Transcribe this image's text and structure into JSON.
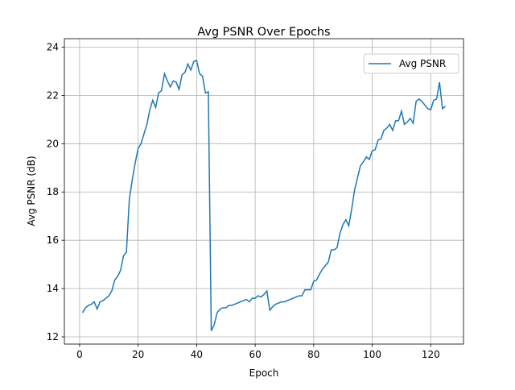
{
  "chart_data": {
    "type": "line",
    "title": "Avg PSNR Over Epochs",
    "x_label": "Epoch",
    "y_label": "Avg PSNR (dB)",
    "x": [
      1,
      2,
      3,
      4,
      5,
      6,
      7,
      8,
      9,
      10,
      11,
      12,
      13,
      14,
      15,
      16,
      17,
      18,
      19,
      20,
      21,
      22,
      23,
      24,
      25,
      26,
      27,
      28,
      29,
      30,
      31,
      32,
      33,
      34,
      35,
      36,
      37,
      38,
      39,
      40,
      41,
      42,
      43,
      44,
      45,
      46,
      47,
      48,
      49,
      50,
      51,
      52,
      53,
      54,
      55,
      56,
      57,
      58,
      59,
      60,
      61,
      62,
      63,
      64,
      65,
      66,
      67,
      68,
      69,
      70,
      71,
      72,
      73,
      74,
      75,
      76,
      77,
      78,
      79,
      80,
      81,
      82,
      83,
      84,
      85,
      86,
      87,
      88,
      89,
      90,
      91,
      92,
      93,
      94,
      95,
      96,
      97,
      98,
      99,
      100,
      101,
      102,
      103,
      104,
      105,
      106,
      107,
      108,
      109,
      110,
      111,
      112,
      113,
      114,
      115,
      116,
      117,
      118,
      119,
      120,
      121,
      122,
      123,
      124,
      125
    ],
    "series": [
      {
        "name": "Avg PSNR",
        "color": "#1f77b4",
        "values": [
          13.0,
          13.2,
          13.3,
          13.35,
          13.45,
          13.15,
          13.45,
          13.5,
          13.6,
          13.7,
          13.9,
          14.35,
          14.5,
          14.75,
          15.35,
          15.5,
          17.7,
          18.5,
          19.2,
          19.8,
          20.0,
          20.4,
          20.8,
          21.4,
          21.8,
          21.5,
          22.1,
          22.2,
          22.9,
          22.6,
          22.35,
          22.6,
          22.55,
          22.25,
          22.85,
          22.95,
          23.3,
          23.05,
          23.4,
          23.45,
          22.9,
          22.8,
          22.1,
          22.15,
          12.25,
          12.5,
          13.0,
          13.15,
          13.2,
          13.2,
          13.3,
          13.3,
          13.35,
          13.4,
          13.45,
          13.5,
          13.55,
          13.45,
          13.6,
          13.6,
          13.7,
          13.65,
          13.75,
          13.9,
          13.1,
          13.25,
          13.35,
          13.4,
          13.45,
          13.45,
          13.5,
          13.55,
          13.6,
          13.65,
          13.7,
          13.7,
          13.95,
          13.95,
          13.95,
          14.3,
          14.35,
          14.6,
          14.8,
          14.95,
          15.1,
          15.6,
          15.6,
          15.7,
          16.3,
          16.65,
          16.85,
          16.6,
          17.3,
          18.1,
          18.6,
          19.1,
          19.25,
          19.45,
          19.35,
          19.7,
          19.75,
          20.15,
          20.2,
          20.55,
          20.65,
          20.8,
          20.55,
          20.95,
          20.95,
          21.35,
          20.8,
          20.9,
          21.05,
          20.85,
          21.75,
          21.85,
          21.75,
          21.6,
          21.45,
          21.4,
          21.8,
          21.85,
          22.55,
          21.45,
          21.55
        ]
      }
    ],
    "xlim": [
      -5.2,
      131.2
    ],
    "ylim": [
      11.7,
      24.35
    ],
    "xticks": [
      0,
      20,
      40,
      60,
      80,
      100,
      120
    ],
    "yticks": [
      12,
      14,
      16,
      18,
      20,
      22,
      24
    ],
    "grid": true,
    "legend": "upper right"
  }
}
